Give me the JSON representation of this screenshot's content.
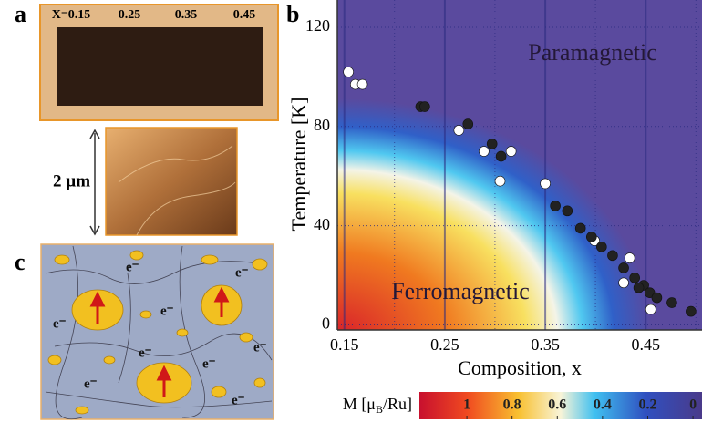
{
  "panel_a": {
    "label": "a",
    "compositions": [
      "X=0.15",
      "0.25",
      "0.35",
      "0.45"
    ],
    "scale": "2 µm"
  },
  "panel_c": {
    "label": "c",
    "electron_labels": [
      "e⁻",
      "e⁻",
      "e⁻",
      "e⁻",
      "e⁻",
      "e⁻",
      "e⁻",
      "e⁻",
      "e⁻"
    ]
  },
  "chart_data": {
    "type": "scatter",
    "panel_label": "b",
    "xlabel": "Composition, x",
    "ylabel": "Temperature [K]",
    "annotations": [
      "Paramagnetic",
      "Ferromagnetic"
    ],
    "xlim": [
      0.143,
      0.506
    ],
    "ylim": [
      -2,
      131
    ],
    "xticks": [
      0.15,
      0.25,
      0.35,
      0.45
    ],
    "yticks": [
      0,
      40,
      80,
      120
    ],
    "grid": true,
    "series": [
      {
        "color": "#ffffff",
        "x": [
          0.154,
          0.161,
          0.168,
          0.264,
          0.289,
          0.316,
          0.305,
          0.35,
          0.399,
          0.434,
          0.428,
          0.455
        ],
        "values": [
          102,
          97,
          97,
          78.5,
          70,
          70,
          58,
          57,
          34,
          27,
          17,
          6.3
        ]
      },
      {
        "color": "#222222",
        "x": [
          0.226,
          0.23,
          0.273,
          0.297,
          0.306,
          0.36,
          0.372,
          0.385,
          0.396,
          0.406,
          0.417,
          0.428,
          0.439,
          0.448,
          0.443,
          0.454,
          0.461,
          0.476,
          0.495
        ],
        "values": [
          88,
          88,
          81,
          73,
          68,
          48,
          46,
          39,
          35.5,
          31.5,
          28,
          23,
          19,
          16,
          15,
          13,
          11,
          9,
          5.5
        ]
      }
    ],
    "colorbar": {
      "label": {
        "pre": "M [μ",
        "sub": "B",
        "post": "/Ru]"
      },
      "clim": [
        1.21,
        -0.04
      ],
      "ticks": [
        1,
        0.8,
        0.6,
        0.4,
        0.2,
        0
      ]
    }
  }
}
